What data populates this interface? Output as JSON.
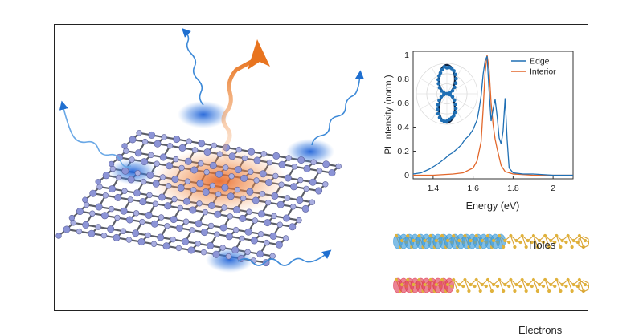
{
  "chart_data": {
    "type": "line",
    "xlabel": "Energy (eV)",
    "ylabel": "PL intensity (norm.)",
    "xlim": [
      1.3,
      2.1
    ],
    "ylim": [
      -0.03,
      1.03
    ],
    "xticks": [
      "1.4",
      "1.6",
      "1.8",
      "2"
    ],
    "xtick_values": [
      1.4,
      1.6,
      1.8,
      2.0
    ],
    "yticks": [
      "0",
      "0.2",
      "0.4",
      "0.6",
      "0.8",
      "1"
    ],
    "ytick_values": [
      0,
      0.2,
      0.4,
      0.6,
      0.8,
      1.0
    ],
    "legend_placement": "top-right",
    "series": [
      {
        "name": "Edge",
        "color": "#1f6fb4",
        "x": [
          1.3,
          1.34,
          1.38,
          1.42,
          1.46,
          1.48,
          1.5,
          1.52,
          1.54,
          1.56,
          1.58,
          1.6,
          1.62,
          1.63,
          1.64,
          1.65,
          1.66,
          1.67,
          1.68,
          1.69,
          1.7,
          1.71,
          1.72,
          1.73,
          1.74,
          1.75,
          1.76,
          1.77,
          1.78,
          1.8,
          1.85,
          1.9,
          2.0,
          2.1
        ],
        "y": [
          0.01,
          0.02,
          0.05,
          0.09,
          0.14,
          0.17,
          0.19,
          0.22,
          0.25,
          0.3,
          0.33,
          0.38,
          0.46,
          0.55,
          0.66,
          0.84,
          0.95,
          0.99,
          0.7,
          0.45,
          0.55,
          0.63,
          0.49,
          0.31,
          0.26,
          0.37,
          0.64,
          0.3,
          0.06,
          0.02,
          0.01,
          0.01,
          0.0,
          0.0
        ]
      },
      {
        "name": "Interior",
        "color": "#e2672b",
        "x": [
          1.3,
          1.4,
          1.5,
          1.55,
          1.6,
          1.62,
          1.64,
          1.65,
          1.66,
          1.67,
          1.68,
          1.69,
          1.7,
          1.71,
          1.72,
          1.73,
          1.74,
          1.76,
          1.8,
          1.9,
          2.1
        ],
        "y": [
          0.0,
          0.0,
          0.01,
          0.02,
          0.06,
          0.12,
          0.28,
          0.55,
          0.85,
          1.0,
          0.88,
          0.6,
          0.42,
          0.3,
          0.22,
          0.15,
          0.08,
          0.03,
          0.01,
          0.0,
          0.0
        ]
      }
    ],
    "inset": {
      "type": "polar-scatter",
      "description_color": "#1f6fb4",
      "fit_color": "#0b1d3a"
    }
  },
  "structure": {
    "holes_label": "Holes",
    "electrons_label": "Electrons"
  }
}
